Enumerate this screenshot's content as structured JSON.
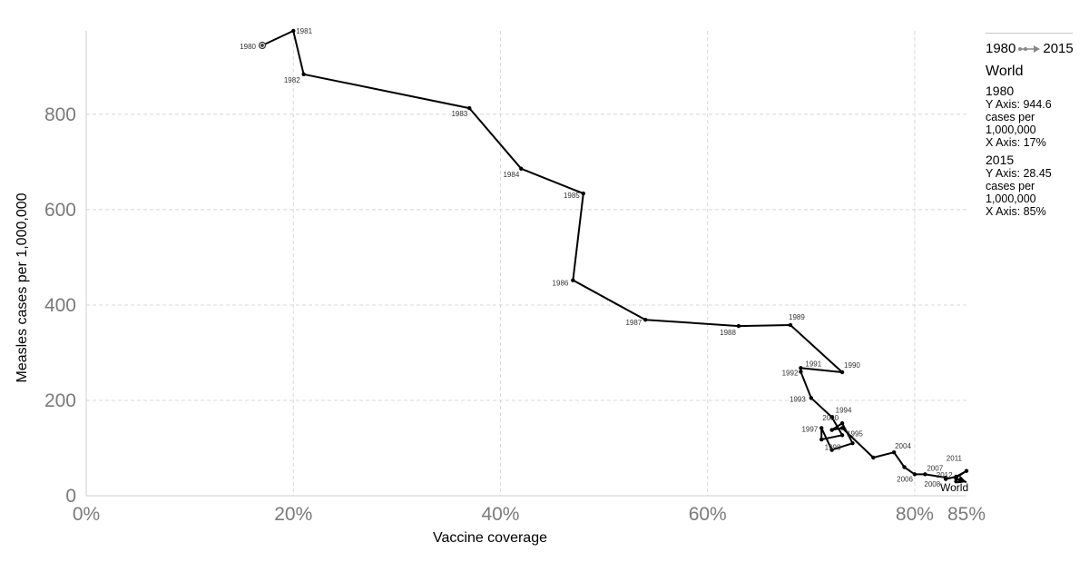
{
  "chart_data": {
    "type": "line",
    "xlabel": "Vaccine coverage",
    "ylabel": "Measles cases per 1,000,000",
    "x_ticks": [
      "0%",
      "20%",
      "40%",
      "60%",
      "80%",
      "85%"
    ],
    "y_ticks": [
      "0",
      "200",
      "400",
      "600",
      "800"
    ],
    "xlim": [
      0,
      85
    ],
    "ylim": [
      0,
      975
    ],
    "grid": true,
    "series": [
      {
        "name": "World",
        "points": [
          {
            "year": "1980",
            "x": 17,
            "y": 944.6
          },
          {
            "year": "1981",
            "x": 20,
            "y": 975
          },
          {
            "year": "1982",
            "x": 21,
            "y": 884
          },
          {
            "year": "1983",
            "x": 37,
            "y": 813
          },
          {
            "year": "1984",
            "x": 42,
            "y": 686
          },
          {
            "year": "1985",
            "x": 48,
            "y": 634
          },
          {
            "year": "1986",
            "x": 47,
            "y": 452
          },
          {
            "year": "1987",
            "x": 54,
            "y": 369
          },
          {
            "year": "1988",
            "x": 63,
            "y": 356
          },
          {
            "year": "1989",
            "x": 68,
            "y": 358
          },
          {
            "year": "1990",
            "x": 73,
            "y": 259
          },
          {
            "year": "1991",
            "x": 69,
            "y": 268
          },
          {
            "year": "1992",
            "x": 69,
            "y": 260
          },
          {
            "year": "1993",
            "x": 70,
            "y": 205
          },
          {
            "year": "1994",
            "x": 72,
            "y": 165
          },
          {
            "year": "1995",
            "x": 73,
            "y": 127
          },
          {
            "year": "1996",
            "x": 71,
            "y": 118
          },
          {
            "year": "1997",
            "x": 71,
            "y": 142
          },
          {
            "year": "1998",
            "x": 72,
            "y": 96
          },
          {
            "year": "1999",
            "x": 74,
            "y": 110
          },
          {
            "year": "2000",
            "x": 73,
            "y": 152
          },
          {
            "year": "2001",
            "x": 72,
            "y": 138
          },
          {
            "year": "2002",
            "x": 73,
            "y": 142
          },
          {
            "year": "2003",
            "x": 76,
            "y": 80
          },
          {
            "year": "2004",
            "x": 78,
            "y": 91
          },
          {
            "year": "2005",
            "x": 79,
            "y": 60
          },
          {
            "year": "2006",
            "x": 80,
            "y": 45
          },
          {
            "year": "2007",
            "x": 81,
            "y": 45
          },
          {
            "year": "2008",
            "x": 83,
            "y": 38
          },
          {
            "year": "2009",
            "x": 83,
            "y": 35
          },
          {
            "year": "2010",
            "x": 84,
            "y": 40
          },
          {
            "year": "2011",
            "x": 85,
            "y": 52
          },
          {
            "year": "2012",
            "x": 84,
            "y": 38
          },
          {
            "year": "2013",
            "x": 84,
            "y": 30
          },
          {
            "year": "2014",
            "x": 84,
            "y": 36
          },
          {
            "year": "2015",
            "x": 85,
            "y": 28.45
          }
        ],
        "labeled_years": [
          "1980",
          "1981",
          "1982",
          "1983",
          "1984",
          "1985",
          "1986",
          "1987",
          "1988",
          "1989",
          "1990",
          "1991",
          "1992",
          "1993",
          "1994",
          "1995",
          "1997",
          "1998",
          "2000",
          "2004",
          "2006",
          "2007",
          "2008",
          "2011",
          "2012"
        ]
      }
    ],
    "series_label": "World"
  },
  "legend": {
    "start_year": "1980",
    "end_year": "2015",
    "entity": "World",
    "entries": [
      {
        "year": "1980",
        "y_text": "Y Axis: 944.6",
        "unit_1": "cases per",
        "unit_2": "1,000,000",
        "x_text": "X Axis: 17%"
      },
      {
        "year": "2015",
        "y_text": "Y Axis: 28.45",
        "unit_1": "cases per",
        "unit_2": "1,000,000",
        "x_text": "X Axis: 85%"
      }
    ]
  }
}
